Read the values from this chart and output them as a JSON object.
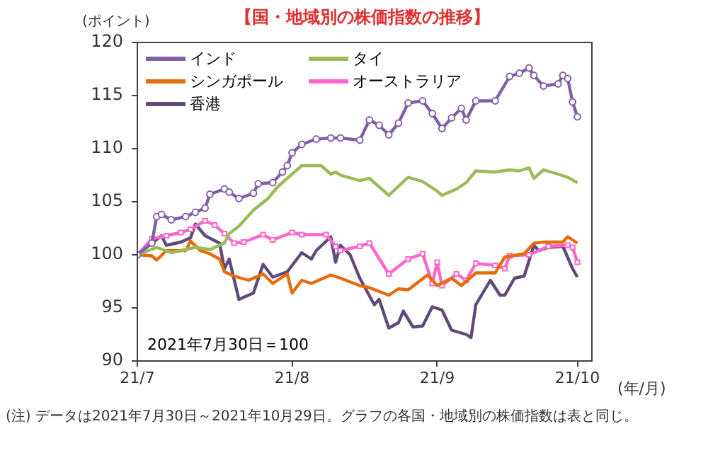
{
  "chart_data": {
    "type": "line",
    "title": "【国・地域別の株価指数の推移】",
    "ylabel": "(ポイント)",
    "xlabel": "(年/月)",
    "xlim": [
      "2021-07-30",
      "2021-11-01"
    ],
    "xticks": [
      {
        "value": "2021-07-30",
        "label": "21/7"
      },
      {
        "value": "2021-08-31",
        "label": "21/8"
      },
      {
        "value": "2021-09-30",
        "label": "21/9"
      },
      {
        "value": "2021-10-29",
        "label": "21/10"
      }
    ],
    "ylim": [
      90,
      120
    ],
    "yticks": [
      90,
      95,
      100,
      105,
      110,
      115,
      120
    ],
    "grid": false,
    "legend": "top left",
    "line_style": "solid",
    "annotations": [
      "2021年7月30日＝100",
      "(注) データは2021年7月30日～2021年10月29日。グラフの各国・地域別の株価指数は表と同じ。"
    ],
    "series": [
      {
        "name": "インド",
        "color": "#7f5fa8",
        "marker": "circle",
        "x": [
          "2021-07-30",
          "2021-08-02",
          "2021-08-03",
          "2021-08-04",
          "2021-08-06",
          "2021-08-09",
          "2021-08-11",
          "2021-08-13",
          "2021-08-14",
          "2021-08-17",
          "2021-08-18",
          "2021-08-20",
          "2021-08-23",
          "2021-08-24",
          "2021-08-27",
          "2021-08-29",
          "2021-08-30",
          "2021-08-31",
          "2021-09-02",
          "2021-09-05",
          "2021-09-08",
          "2021-09-10",
          "2021-09-14",
          "2021-09-16",
          "2021-09-18",
          "2021-09-20",
          "2021-09-22",
          "2021-09-24",
          "2021-09-27",
          "2021-09-29",
          "2021-10-01",
          "2021-10-03",
          "2021-10-05",
          "2021-10-06",
          "2021-10-08",
          "2021-10-12",
          "2021-10-15",
          "2021-10-17",
          "2021-10-19",
          "2021-10-20",
          "2021-10-22",
          "2021-10-25",
          "2021-10-26",
          "2021-10-27",
          "2021-10-28",
          "2021-10-29"
        ],
        "values": [
          100.0,
          101.1,
          103.6,
          103.8,
          103.3,
          103.6,
          104.0,
          104.4,
          105.7,
          106.2,
          105.9,
          105.3,
          105.8,
          106.7,
          106.8,
          107.8,
          108.4,
          109.6,
          110.4,
          110.9,
          111.0,
          111.0,
          110.8,
          112.7,
          112.2,
          111.3,
          112.4,
          114.3,
          114.5,
          113.3,
          111.9,
          112.9,
          113.8,
          112.7,
          114.5,
          114.5,
          116.8,
          117.1,
          117.6,
          116.9,
          115.9,
          116.1,
          116.9,
          116.6,
          114.4,
          113.0
        ]
      },
      {
        "name": "タイ",
        "color": "#9bbb59",
        "marker": "none",
        "x": [
          "2021-07-30",
          "2021-08-03",
          "2021-08-06",
          "2021-08-08",
          "2021-08-11",
          "2021-08-14",
          "2021-08-17",
          "2021-08-18",
          "2021-08-20",
          "2021-08-23",
          "2021-08-26",
          "2021-08-28",
          "2021-08-31",
          "2021-09-02",
          "2021-09-06",
          "2021-09-08",
          "2021-09-09",
          "2021-09-10",
          "2021-09-14",
          "2021-09-16",
          "2021-09-20",
          "2021-09-24",
          "2021-09-27",
          "2021-09-30",
          "2021-10-01",
          "2021-10-04",
          "2021-10-06",
          "2021-10-08",
          "2021-10-12",
          "2021-10-15",
          "2021-10-17",
          "2021-10-19",
          "2021-10-20",
          "2021-10-22",
          "2021-10-25",
          "2021-10-27",
          "2021-10-29"
        ],
        "values": [
          100.0,
          100.7,
          100.2,
          100.4,
          100.7,
          100.5,
          101.1,
          102.0,
          102.7,
          104.2,
          105.3,
          106.4,
          107.6,
          108.4,
          108.4,
          107.6,
          107.8,
          107.5,
          107.0,
          107.2,
          105.6,
          107.3,
          106.9,
          106.0,
          105.6,
          106.2,
          106.8,
          107.9,
          107.8,
          108.0,
          107.9,
          108.2,
          107.2,
          108.0,
          107.6,
          107.3,
          106.8
        ]
      },
      {
        "name": "シンガポール",
        "color": "#e46c0a",
        "marker": "none",
        "x": [
          "2021-07-30",
          "2021-08-02",
          "2021-08-03",
          "2021-08-05",
          "2021-08-08",
          "2021-08-09",
          "2021-08-10",
          "2021-08-12",
          "2021-08-14",
          "2021-08-16",
          "2021-08-17",
          "2021-08-19",
          "2021-08-22",
          "2021-08-25",
          "2021-08-27",
          "2021-08-30",
          "2021-08-31",
          "2021-09-02",
          "2021-09-04",
          "2021-09-08",
          "2021-09-10",
          "2021-09-14",
          "2021-09-16",
          "2021-09-20",
          "2021-09-22",
          "2021-09-24",
          "2021-09-26",
          "2021-09-28",
          "2021-09-30",
          "2021-10-03",
          "2021-10-05",
          "2021-10-08",
          "2021-10-12",
          "2021-10-14",
          "2021-10-18",
          "2021-10-20",
          "2021-10-22",
          "2021-10-26",
          "2021-10-27",
          "2021-10-29"
        ],
        "values": [
          100.0,
          99.9,
          99.5,
          100.4,
          100.4,
          100.4,
          101.3,
          100.4,
          100.1,
          99.6,
          98.4,
          98.0,
          97.6,
          98.2,
          97.3,
          98.2,
          96.4,
          97.6,
          97.3,
          98.1,
          97.8,
          97.1,
          96.9,
          96.2,
          96.8,
          96.7,
          97.4,
          98.1,
          97.1,
          97.8,
          97.1,
          98.3,
          98.3,
          99.8,
          100.1,
          101.1,
          101.2,
          101.2,
          101.7,
          101.1
        ]
      },
      {
        "name": "オーストラリア",
        "color": "#ff66cc",
        "marker": "square",
        "x": [
          "2021-07-30",
          "2021-08-02",
          "2021-08-05",
          "2021-08-08",
          "2021-08-10",
          "2021-08-13",
          "2021-08-15",
          "2021-08-17",
          "2021-08-19",
          "2021-08-21",
          "2021-08-25",
          "2021-08-27",
          "2021-08-31",
          "2021-09-02",
          "2021-09-07",
          "2021-09-09",
          "2021-09-10",
          "2021-09-14",
          "2021-09-16",
          "2021-09-20",
          "2021-09-24",
          "2021-09-27",
          "2021-09-29",
          "2021-09-30",
          "2021-10-01",
          "2021-10-04",
          "2021-10-06",
          "2021-10-08",
          "2021-10-12",
          "2021-10-14",
          "2021-10-15",
          "2021-10-19",
          "2021-10-23",
          "2021-10-27",
          "2021-10-28",
          "2021-10-29"
        ],
        "values": [
          100.0,
          101.5,
          101.8,
          102.1,
          102.4,
          103.2,
          102.8,
          102.0,
          101.1,
          101.2,
          101.9,
          101.4,
          102.1,
          101.9,
          101.9,
          100.8,
          100.4,
          100.8,
          101.1,
          98.2,
          99.6,
          100.1,
          97.3,
          99.3,
          97.1,
          98.2,
          97.6,
          99.2,
          99.0,
          98.7,
          99.9,
          100.0,
          100.8,
          100.9,
          100.7,
          99.3
        ]
      },
      {
        "name": "香港",
        "color": "#5f4b7a",
        "marker": "none",
        "x": [
          "2021-07-30",
          "2021-08-02",
          "2021-08-04",
          "2021-08-05",
          "2021-08-08",
          "2021-08-10",
          "2021-08-11",
          "2021-08-13",
          "2021-08-16",
          "2021-08-17",
          "2021-08-18",
          "2021-08-20",
          "2021-08-23",
          "2021-08-25",
          "2021-08-27",
          "2021-08-30",
          "2021-09-02",
          "2021-09-04",
          "2021-09-05",
          "2021-09-08",
          "2021-09-09",
          "2021-09-10",
          "2021-09-12",
          "2021-09-14",
          "2021-09-17",
          "2021-09-18",
          "2021-09-20",
          "2021-09-22",
          "2021-09-23",
          "2021-09-25",
          "2021-09-27",
          "2021-09-29",
          "2021-10-01",
          "2021-10-03",
          "2021-10-06",
          "2021-10-07",
          "2021-10-08",
          "2021-10-11",
          "2021-10-13",
          "2021-10-14",
          "2021-10-16",
          "2021-10-18",
          "2021-10-20",
          "2021-10-21",
          "2021-10-23",
          "2021-10-26",
          "2021-10-28",
          "2021-10-29"
        ],
        "values": [
          100.0,
          101.1,
          101.8,
          100.9,
          101.2,
          101.6,
          102.9,
          101.8,
          101.1,
          98.7,
          99.6,
          95.8,
          96.4,
          99.1,
          97.9,
          98.4,
          100.2,
          99.6,
          100.4,
          101.7,
          99.3,
          100.9,
          100.0,
          97.8,
          95.3,
          95.8,
          93.1,
          93.6,
          94.7,
          93.2,
          93.3,
          95.1,
          94.8,
          92.9,
          92.5,
          92.2,
          95.3,
          97.6,
          96.2,
          96.2,
          97.8,
          98.0,
          100.9,
          100.4,
          100.7,
          100.8,
          98.7,
          97.9
        ]
      }
    ]
  }
}
